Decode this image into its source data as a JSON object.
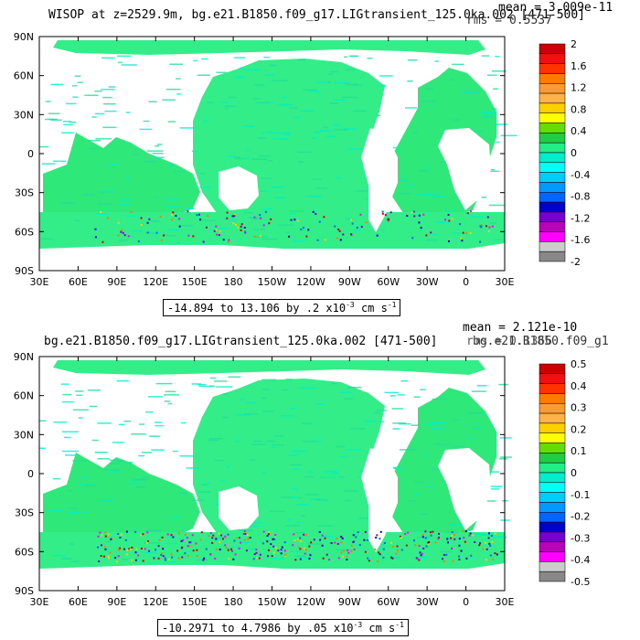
{
  "chart_data": [
    {
      "type": "heatmap",
      "title": "WISOP at z=2529.9m, bg.e21.B1850.f09_g17.LIGtransient_125.0ka.002 [471-500]",
      "stats": {
        "mean": "mean = 3.009e-11",
        "rms": "rms = 0.5537"
      },
      "range_label": "-14.894 to 13.106 by .2 x10",
      "range_exponent": "-3",
      "range_units": " cm s",
      "range_units_exponent": "-1",
      "x_ticks": [
        "30E",
        "60E",
        "90E",
        "120E",
        "150E",
        "180",
        "150W",
        "120W",
        "90W",
        "60W",
        "30W",
        "0",
        "30E"
      ],
      "y_ticks": [
        "90N",
        "60N",
        "30N",
        "0",
        "30S",
        "60S",
        "90S"
      ],
      "colorbar_labels": [
        "2",
        "1.6",
        "1.2",
        "0.8",
        "0.4",
        "0",
        "-0.4",
        "-0.8",
        "-1.2",
        "-1.6",
        "-2"
      ],
      "colorbar_colors": [
        "#cc0000",
        "#ee1111",
        "#ff3300",
        "#ff7a00",
        "#ff9933",
        "#ffb347",
        "#ffd000",
        "#ffff00",
        "#66dd00",
        "#22cc44",
        "#22ee88",
        "#00eecc",
        "#00ffff",
        "#00ccff",
        "#0099ff",
        "#0066ff",
        "#0000cc",
        "#7700cc",
        "#bb00bb",
        "#ff00ff",
        "#cccccc",
        "#888888"
      ]
    },
    {
      "type": "heatmap",
      "title": "bg.e21.B1850.f09_g17.LIGtransient_125.0ka.002 [471-500]",
      "title2": "bg.e21.B1850.f09_g1",
      "stats": {
        "mean": "mean = 2.121e-10",
        "rms": "rms = 0.1366"
      },
      "range_label": "-10.2971 to 4.7986 by .05 x10",
      "range_exponent": "-3",
      "range_units": " cm s",
      "range_units_exponent": "-1",
      "x_ticks": [
        "30E",
        "60E",
        "90E",
        "120E",
        "150E",
        "180",
        "150W",
        "120W",
        "90W",
        "60W",
        "30W",
        "0",
        "30E"
      ],
      "y_ticks": [
        "90N",
        "60N",
        "30N",
        "0",
        "30S",
        "60S",
        "90S"
      ],
      "colorbar_labels": [
        "0.5",
        "0.4",
        "0.3",
        "0.2",
        "0.1",
        "0",
        "-0.1",
        "-0.2",
        "-0.3",
        "-0.4",
        "-0.5"
      ],
      "colorbar_colors": [
        "#cc0000",
        "#ee1111",
        "#ff3300",
        "#ff7a00",
        "#ff9933",
        "#ffb347",
        "#ffd000",
        "#ffff00",
        "#66dd00",
        "#22cc44",
        "#22ee88",
        "#00eecc",
        "#00ffff",
        "#00ccff",
        "#0099ff",
        "#0066ff",
        "#0000cc",
        "#7700cc",
        "#bb00bb",
        "#ff00ff",
        "#cccccc",
        "#888888"
      ]
    }
  ]
}
